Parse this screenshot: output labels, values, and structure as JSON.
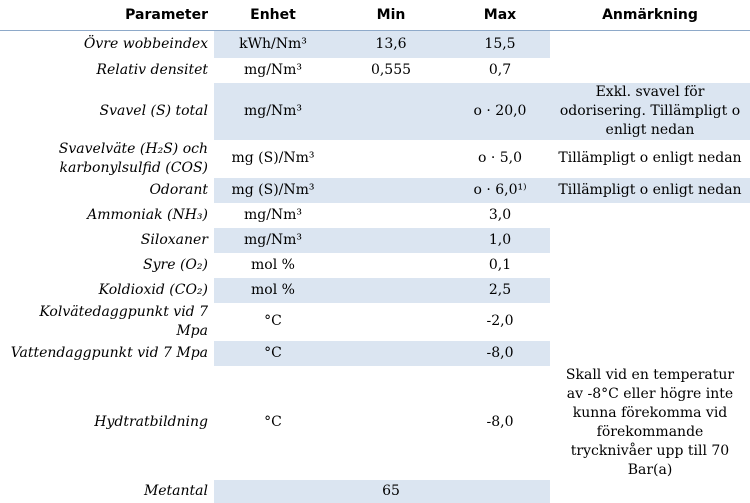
{
  "headers": {
    "parameter": "Parameter",
    "unit": "Enhet",
    "min": "Min",
    "max": "Max",
    "note": "Anmärkning"
  },
  "rows": [
    {
      "parameter": "Övre wobbeindex",
      "unit": "kWh/Nm³",
      "min": "13,6",
      "max": "15,5",
      "note": ""
    },
    {
      "parameter": "Relativ densitet",
      "unit": "mg/Nm³",
      "min": "0,555",
      "max": "0,7",
      "note": ""
    },
    {
      "parameter": "Svavel (S) total",
      "unit": "mg/Nm³",
      "min": "",
      "max": "o · 20,0",
      "note": "Exkl. svavel för odorisering. Tillämpligt o enligt nedan"
    },
    {
      "parameter": "Svavelväte (H₂S) och karbonylsulfid (COS)",
      "unit": "mg (S)/Nm³",
      "min": "",
      "max": "o · 5,0",
      "note": "Tillämpligt o enligt nedan"
    },
    {
      "parameter": "Odorant",
      "unit": "mg (S)/Nm³",
      "min": "",
      "max": "o · 6,0¹⁾",
      "note": "Tillämpligt o enligt nedan"
    },
    {
      "parameter": "Ammoniak (NH₃)",
      "unit": "mg/Nm³",
      "min": "",
      "max": "3,0",
      "note": ""
    },
    {
      "parameter": "Siloxaner",
      "unit": "mg/Nm³",
      "min": "",
      "max": "1,0",
      "note": ""
    },
    {
      "parameter": "Syre (O₂)",
      "unit": "mol %",
      "min": "",
      "max": "0,1",
      "note": ""
    },
    {
      "parameter": "Koldioxid (CO₂)",
      "unit": "mol %",
      "min": "",
      "max": "2,5",
      "note": ""
    },
    {
      "parameter": "Kolvätedaggpunkt vid 7 Mpa",
      "unit": "°C",
      "min": "",
      "max": "-2,0",
      "note": ""
    },
    {
      "parameter": "Vattendaggpunkt vid 7 Mpa",
      "unit": "°C",
      "min": "",
      "max": "-8,0",
      "note": ""
    },
    {
      "parameter": "Hydtratbildning",
      "unit": "°C",
      "min": "",
      "max": "-8,0",
      "note": "Skall vid en temperatur av -8°C eller högre inte kunna förekomma vid förekommande trycknivåer upp till 70 Bar(a)"
    },
    {
      "parameter": "Metantal",
      "unit": "",
      "min": "65",
      "max": "",
      "note": ""
    }
  ],
  "colors": {
    "shade": "#dbe5f1",
    "rule": "#8ea9c9"
  }
}
